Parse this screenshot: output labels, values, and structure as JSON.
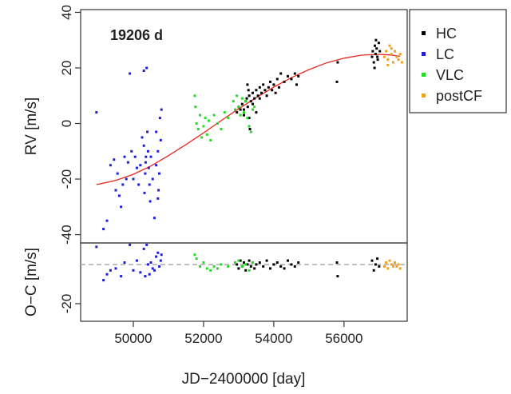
{
  "chart_data": [
    {
      "type": "scatter",
      "panel": "rv",
      "title": "19206 d",
      "ylabel": "RV [m/s]",
      "xlabel": "",
      "xlim": [
        48500,
        57800
      ],
      "ylim": [
        -43,
        41
      ],
      "xticks": [
        50000,
        52000,
        54000,
        56000
      ],
      "yticks": [
        -40,
        -20,
        0,
        20,
        40
      ],
      "yticklabels": [
        "-40",
        "-20",
        "0",
        "20",
        "40"
      ],
      "grid": false,
      "legend": "right",
      "series": [
        {
          "name": "HC",
          "color": "#000000",
          "x": [
            52950,
            53000,
            53050,
            53100,
            53150,
            53200,
            53230,
            53260,
            53300,
            53350,
            53400,
            53450,
            53500,
            53550,
            53600,
            53650,
            53700,
            53750,
            53800,
            53850,
            53900,
            53950,
            54000,
            54050,
            54100,
            54150,
            54200,
            54300,
            54400,
            54500,
            54600,
            54650,
            54700,
            53300,
            53320,
            53150,
            53400,
            53500,
            53600,
            53250,
            53280,
            55800,
            55820,
            56800,
            56820,
            56850,
            56880,
            56900,
            56930,
            56960,
            56990,
            57020,
            56870,
            56910,
            56950
          ],
          "y": [
            4,
            6,
            5,
            7,
            3,
            8,
            9,
            6,
            10,
            8,
            11,
            9,
            12,
            10,
            13,
            11,
            14,
            12,
            10,
            13,
            15,
            12,
            14,
            11,
            16,
            13,
            18,
            15,
            17,
            16,
            18,
            14,
            17,
            2,
            -2,
            5,
            7,
            4,
            9,
            14,
            12,
            15,
            22,
            24,
            26,
            22,
            28,
            25,
            27,
            23,
            29,
            26,
            20,
            30,
            24
          ]
        },
        {
          "name": "LC",
          "color": "#1f1fd6",
          "x": [
            48950,
            49150,
            49250,
            49350,
            49450,
            49500,
            49550,
            49650,
            49700,
            49750,
            49800,
            49850,
            49900,
            49950,
            50000,
            50050,
            50100,
            50150,
            50200,
            50250,
            50300,
            50320,
            50340,
            50360,
            50380,
            50400,
            50420,
            50440,
            50460,
            50480,
            50500,
            50550,
            50600,
            50650,
            50700,
            50720,
            50740,
            50760,
            50780,
            50800,
            49600,
            50300,
            50350,
            50650,
            50700
          ],
          "y": [
            4,
            -38,
            -35,
            -15,
            -13,
            -24,
            -18,
            -30,
            -22,
            -12,
            -20,
            -14,
            18,
            -10,
            -20,
            -12,
            -16,
            -22,
            -15,
            -5,
            -8,
            -25,
            -18,
            -12,
            20,
            -3,
            -10,
            -16,
            -22,
            -28,
            -12,
            -20,
            -34,
            -15,
            -10,
            -24,
            -18,
            2,
            -6,
            5,
            -26,
            19,
            -14,
            -3,
            -27
          ]
        },
        {
          "name": "VLC",
          "color": "#22dd22",
          "x": [
            51750,
            51770,
            51800,
            51850,
            51900,
            51950,
            52000,
            52050,
            52100,
            52150,
            52200,
            52300,
            52400,
            52500,
            52600,
            52700,
            52850,
            52900,
            52950,
            53000,
            53050,
            53100,
            53150,
            53200,
            53250,
            53300,
            53350,
            53400,
            53450
          ],
          "y": [
            10,
            6,
            0,
            -2,
            3,
            -5,
            -1,
            2,
            -4,
            1,
            -6,
            3,
            0,
            -2,
            4,
            2,
            8,
            5,
            10,
            6,
            3,
            9,
            4,
            8,
            2,
            -1,
            -3,
            5,
            6
          ]
        },
        {
          "name": "postCF",
          "color": "#f0a020",
          "x": [
            57150,
            57200,
            57250,
            57300,
            57350,
            57400,
            57450,
            57500,
            57550,
            57600,
            57650,
            57250,
            57350
          ],
          "y": [
            24,
            26,
            23,
            28,
            25,
            22,
            26,
            24,
            23,
            25,
            22,
            21,
            27
          ]
        }
      ],
      "model": {
        "name": "",
        "color": "#e8281e",
        "x": [
          48950,
          49500,
          50000,
          50500,
          51000,
          51500,
          52000,
          52500,
          53000,
          53500,
          54000,
          54500,
          55000,
          55500,
          56000,
          56500,
          57000,
          57300,
          57600
        ],
        "y": [
          -22,
          -20.5,
          -18.3,
          -15.3,
          -11.6,
          -7.6,
          -3.4,
          1.0,
          5.3,
          9.3,
          13.1,
          16.5,
          19.4,
          21.8,
          23.5,
          24.6,
          24.9,
          24.7,
          24.2
        ]
      }
    },
    {
      "type": "scatter",
      "panel": "residuals",
      "title": "",
      "ylabel": "O−C [m/s]",
      "xlabel": "JD−2400000 [day]",
      "xlim": [
        48500,
        57800
      ],
      "ylim": [
        -29,
        11
      ],
      "xticks": [
        50000,
        52000,
        54000,
        56000
      ],
      "xticklabels": [
        "50000",
        "52000",
        "54000",
        "56000"
      ],
      "yticks": [
        -20
      ],
      "yticklabels": [
        "-20"
      ],
      "zero_line": 0,
      "zero_line_color": "#aaaaaa",
      "series": [
        {
          "name": "HC",
          "color": "#000000",
          "x": [
            52950,
            53000,
            53050,
            53100,
            53150,
            53200,
            53250,
            53300,
            53350,
            53400,
            53450,
            53500,
            53600,
            53700,
            53800,
            53900,
            54000,
            54100,
            54200,
            54300,
            54400,
            54500,
            54600,
            54700,
            55800,
            55820,
            56800,
            56850,
            56900,
            56950,
            57000
          ],
          "y": [
            0,
            -2,
            2,
            -1,
            1,
            -3,
            0,
            2,
            -1,
            1,
            -2,
            0,
            1,
            -1,
            2,
            -2,
            0,
            1,
            -1,
            -2,
            2,
            0,
            -1,
            1,
            1,
            -6,
            2,
            -3,
            0,
            3,
            -1
          ]
        },
        {
          "name": "LC",
          "color": "#1f1fd6",
          "x": [
            48950,
            49150,
            49250,
            49350,
            49500,
            49650,
            49750,
            49900,
            50000,
            50100,
            50200,
            50300,
            50340,
            50380,
            50420,
            50460,
            50500,
            50550,
            50600,
            50650,
            50700,
            50740,
            50780,
            50800
          ],
          "y": [
            9,
            -8,
            -5,
            -3,
            -2,
            -6,
            1,
            10,
            -3,
            2,
            -4,
            8,
            -6,
            10,
            0,
            -5,
            1,
            -2,
            -3,
            4,
            6,
            -1,
            2,
            5
          ]
        },
        {
          "name": "VLC",
          "color": "#22dd22",
          "x": [
            51750,
            51800,
            51900,
            52000,
            52100,
            52200,
            52300,
            52400,
            52500,
            52700,
            52900,
            53000,
            53100,
            53200,
            53300,
            53400
          ],
          "y": [
            5,
            3,
            -1,
            1,
            -2,
            -3,
            -1,
            -2,
            0,
            -1,
            1,
            2,
            -1,
            0,
            -3,
            1
          ]
        },
        {
          "name": "postCF",
          "color": "#f0a020",
          "x": [
            57150,
            57200,
            57250,
            57300,
            57350,
            57400,
            57450,
            57500,
            57550,
            57600
          ],
          "y": [
            -1,
            1,
            -2,
            2,
            0,
            -1,
            1,
            -1,
            0,
            -2
          ]
        }
      ]
    }
  ],
  "legend": {
    "entries": [
      {
        "label": "HC",
        "color": "#000000"
      },
      {
        "label": "LC",
        "color": "#1f1fd6"
      },
      {
        "label": "VLC",
        "color": "#22dd22"
      },
      {
        "label": "postCF",
        "color": "#f0a020"
      }
    ]
  }
}
